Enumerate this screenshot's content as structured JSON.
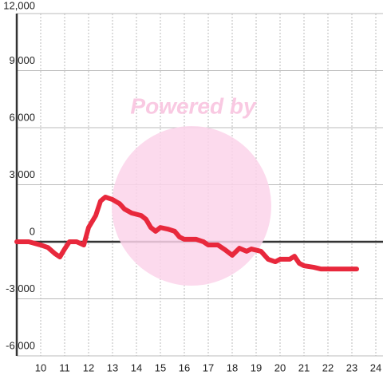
{
  "chart_data": {
    "type": "line",
    "watermark": "Powered by",
    "x": [
      9.0,
      9.5,
      10.0,
      10.3,
      10.6,
      10.8,
      11.0,
      11.2,
      11.5,
      11.8,
      12.0,
      12.3,
      12.5,
      12.7,
      13.0,
      13.3,
      13.5,
      13.8,
      14.2,
      14.4,
      14.6,
      14.8,
      15.0,
      15.3,
      15.6,
      15.8,
      16.0,
      16.5,
      16.8,
      17.0,
      17.4,
      17.7,
      18.0,
      18.3,
      18.6,
      18.8,
      19.2,
      19.5,
      19.8,
      20.0,
      20.4,
      20.6,
      20.8,
      21.0,
      21.4,
      21.7,
      22.3,
      23.2
    ],
    "series": [
      {
        "color": "#e8283c",
        "values": [
          0,
          0,
          -170,
          -300,
          -630,
          -800,
          -380,
          0,
          0,
          -170,
          750,
          1380,
          2140,
          2350,
          2220,
          2000,
          1720,
          1510,
          1380,
          1180,
          750,
          550,
          750,
          670,
          550,
          250,
          130,
          130,
          0,
          -170,
          -170,
          -420,
          -710,
          -340,
          -500,
          -380,
          -500,
          -920,
          -1050,
          -920,
          -920,
          -760,
          -1130,
          -1260,
          -1340,
          -1430,
          -1430,
          -1430
        ]
      }
    ],
    "xlim": [
      9,
      24.3
    ],
    "xticks": [
      10,
      11,
      12,
      13,
      14,
      15,
      16,
      17,
      18,
      19,
      20,
      21,
      22,
      23,
      24
    ],
    "ylim": [
      -6000,
      12000
    ],
    "yticks": [
      {
        "value": -6000,
        "label": "-6,000"
      },
      {
        "value": -3000,
        "label": "-3,000"
      },
      0,
      {
        "value": 3000,
        "label": "3,000"
      },
      {
        "value": 6000,
        "label": "6,000"
      },
      {
        "value": 9000,
        "label": "9,000"
      },
      {
        "value": 12000,
        "label": "12,000"
      }
    ],
    "grid": true
  }
}
